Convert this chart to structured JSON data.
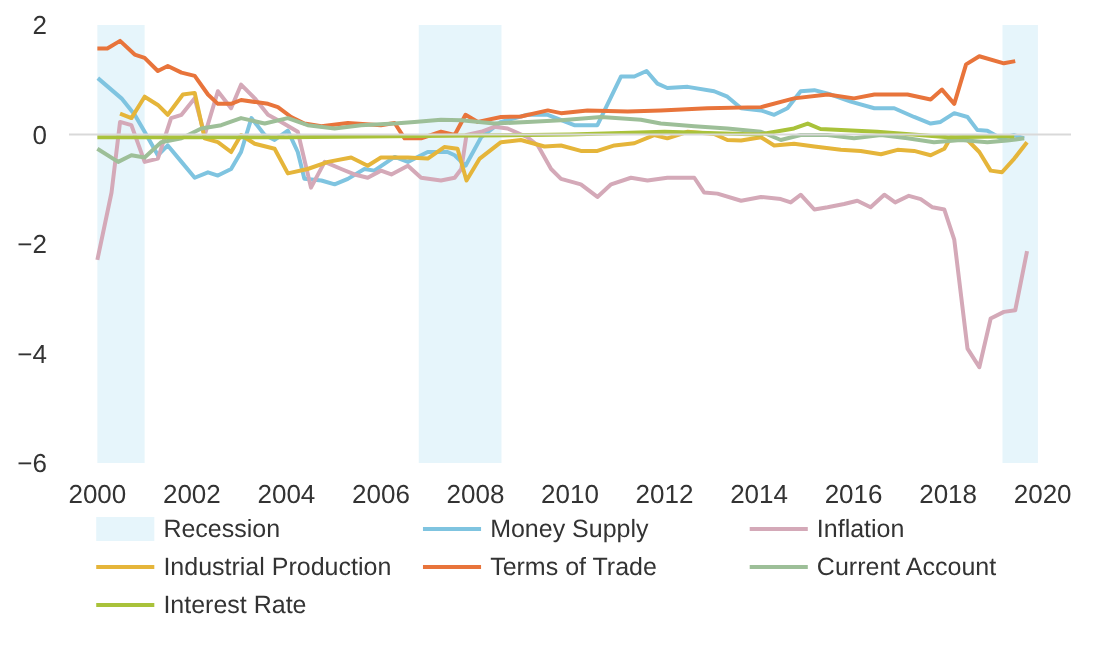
{
  "chart_data": {
    "type": "line",
    "xlim": [
      1999.4,
      2020.6
    ],
    "ylim": [
      -6,
      2
    ],
    "xticks": [
      2000,
      2002,
      2004,
      2006,
      2008,
      2010,
      2012,
      2014,
      2016,
      2018,
      2020
    ],
    "yticks": [
      -6,
      -4,
      -2,
      0,
      2
    ],
    "grid": false,
    "legend": "bottom",
    "line_style": "solid",
    "marker": "none",
    "bands": [
      {
        "axis": "x",
        "from": 2000.0,
        "to": 2001.0,
        "label": "Recession",
        "color": "#e6f5fb"
      },
      {
        "axis": "x",
        "from": 2006.8,
        "to": 2008.55,
        "label": null,
        "color": "#e6f5fb"
      },
      {
        "axis": "x",
        "from": 2019.15,
        "to": 2019.9,
        "label": null,
        "color": "#e6f5fb"
      }
    ],
    "ref_lines": [
      {
        "axis": "y",
        "value": 0,
        "label": null,
        "color": "#d9d9d9"
      }
    ],
    "series": [
      {
        "name": "Money Supply",
        "color": "#7fc4e0",
        "x": [
          2000.01,
          2000.51,
          2000.79,
          2001.0,
          2001.28,
          2001.49,
          2001.78,
          2002.06,
          2002.34,
          2002.55,
          2002.83,
          2003.04,
          2003.26,
          2003.54,
          2003.75,
          2004.03,
          2004.24,
          2004.38,
          2004.74,
          2005.02,
          2005.3,
          2005.65,
          2005.86,
          2006.29,
          2006.57,
          2006.99,
          2007.41,
          2007.56,
          2007.79,
          2008.12,
          2008.54,
          2009.1,
          2009.53,
          2010.09,
          2010.58,
          2011.08,
          2011.36,
          2011.62,
          2011.85,
          2012.06,
          2012.49,
          2013.05,
          2013.33,
          2013.62,
          2014.04,
          2014.32,
          2014.6,
          2014.88,
          2015.17,
          2015.52,
          2015.94,
          2016.44,
          2016.86,
          2017.28,
          2017.63,
          2017.84,
          2018.13,
          2018.41,
          2018.62,
          2018.83,
          2019.11,
          2019.4,
          2019.61
        ],
        "values": [
          1.03,
          0.66,
          0.36,
          0.05,
          -0.38,
          -0.2,
          -0.5,
          -0.79,
          -0.69,
          -0.75,
          -0.63,
          -0.32,
          0.3,
          -0.01,
          -0.1,
          0.07,
          -0.32,
          -0.81,
          -0.84,
          -0.91,
          -0.81,
          -0.63,
          -0.66,
          -0.41,
          -0.5,
          -0.32,
          -0.32,
          -0.38,
          -0.57,
          -0.05,
          0.23,
          0.36,
          0.36,
          0.17,
          0.17,
          1.06,
          1.06,
          1.16,
          0.93,
          0.85,
          0.87,
          0.79,
          0.69,
          0.48,
          0.44,
          0.36,
          0.48,
          0.79,
          0.81,
          0.73,
          0.6,
          0.48,
          0.48,
          0.32,
          0.2,
          0.23,
          0.39,
          0.32,
          0.08,
          0.07,
          -0.07,
          -0.01,
          -0.07
        ]
      },
      {
        "name": "Inflation",
        "color": "#d4a9b8",
        "x": [
          2000.0,
          2000.3,
          2000.48,
          2000.72,
          2001.0,
          2001.28,
          2001.56,
          2001.78,
          2002.06,
          2002.27,
          2002.55,
          2002.83,
          2003.04,
          2003.33,
          2003.61,
          2003.89,
          2004.24,
          2004.52,
          2004.81,
          2005.16,
          2005.44,
          2005.72,
          2006.0,
          2006.22,
          2006.57,
          2006.85,
          2007.27,
          2007.56,
          2007.7,
          2007.81,
          2008.12,
          2008.4,
          2008.68,
          2009.1,
          2009.32,
          2009.6,
          2009.81,
          2010.23,
          2010.58,
          2010.87,
          2011.29,
          2011.64,
          2012.06,
          2012.63,
          2012.84,
          2013.12,
          2013.62,
          2014.04,
          2014.46,
          2014.67,
          2014.88,
          2015.17,
          2015.45,
          2015.8,
          2016.08,
          2016.36,
          2016.65,
          2016.88,
          2017.17,
          2017.42,
          2017.67,
          2017.92,
          2018.13,
          2018.41,
          2018.66,
          2018.9,
          2019.18,
          2019.42,
          2019.67
        ],
        "values": [
          -2.29,
          -1.06,
          0.23,
          0.17,
          -0.5,
          -0.44,
          0.3,
          0.36,
          0.66,
          -0.01,
          0.79,
          0.48,
          0.91,
          0.66,
          0.36,
          0.23,
          0.05,
          -0.97,
          -0.5,
          -0.63,
          -0.73,
          -0.79,
          -0.66,
          -0.73,
          -0.57,
          -0.79,
          -0.84,
          -0.79,
          -0.63,
          -0.01,
          0.05,
          0.14,
          0.11,
          -0.05,
          -0.2,
          -0.63,
          -0.81,
          -0.91,
          -1.14,
          -0.91,
          -0.79,
          -0.84,
          -0.79,
          -0.79,
          -1.06,
          -1.08,
          -1.21,
          -1.14,
          -1.18,
          -1.24,
          -1.1,
          -1.37,
          -1.33,
          -1.27,
          -1.21,
          -1.33,
          -1.1,
          -1.24,
          -1.12,
          -1.18,
          -1.33,
          -1.37,
          -1.92,
          -3.91,
          -4.25,
          -3.36,
          -3.24,
          -3.21,
          -2.13
        ]
      },
      {
        "name": "Industrial Production",
        "color": "#e5b53a",
        "x": [
          2000.48,
          2000.72,
          2001.0,
          2001.28,
          2001.49,
          2001.81,
          2002.06,
          2002.27,
          2002.55,
          2002.83,
          2003.04,
          2003.33,
          2003.75,
          2004.03,
          2004.45,
          2004.88,
          2005.37,
          2005.72,
          2006.0,
          2006.57,
          2006.99,
          2007.34,
          2007.62,
          2007.81,
          2008.09,
          2008.54,
          2008.96,
          2009.46,
          2009.81,
          2010.23,
          2010.58,
          2010.94,
          2011.36,
          2011.78,
          2012.06,
          2012.49,
          2013.05,
          2013.33,
          2013.62,
          2014.04,
          2014.32,
          2014.74,
          2015.17,
          2015.73,
          2016.15,
          2016.58,
          2016.93,
          2017.28,
          2017.63,
          2017.92,
          2018.06,
          2018.41,
          2018.66,
          2018.9,
          2019.14,
          2019.4,
          2019.67
        ],
        "values": [
          0.38,
          0.3,
          0.69,
          0.54,
          0.36,
          0.73,
          0.76,
          -0.07,
          -0.14,
          -0.32,
          -0.01,
          -0.17,
          -0.26,
          -0.71,
          -0.63,
          -0.5,
          -0.42,
          -0.57,
          -0.42,
          -0.42,
          -0.44,
          -0.23,
          -0.26,
          -0.84,
          -0.44,
          -0.14,
          -0.1,
          -0.22,
          -0.2,
          -0.3,
          -0.3,
          -0.2,
          -0.16,
          -0.01,
          -0.07,
          0.05,
          0.01,
          -0.1,
          -0.11,
          -0.05,
          -0.2,
          -0.17,
          -0.22,
          -0.28,
          -0.3,
          -0.36,
          -0.28,
          -0.3,
          -0.38,
          -0.26,
          -0.05,
          -0.1,
          -0.32,
          -0.66,
          -0.69,
          -0.44,
          -0.14
        ]
      },
      {
        "name": "Terms of Trade",
        "color": "#e8743b",
        "x": [
          2000.0,
          2000.21,
          2000.48,
          2000.79,
          2001.0,
          2001.28,
          2001.49,
          2001.78,
          2002.06,
          2002.34,
          2002.55,
          2002.83,
          2003.04,
          2003.61,
          2003.82,
          2004.1,
          2004.38,
          2004.74,
          2005.3,
          2006.0,
          2006.29,
          2006.5,
          2006.85,
          2007.27,
          2007.56,
          2007.79,
          2008.05,
          2008.54,
          2008.96,
          2009.53,
          2009.81,
          2010.37,
          2011.22,
          2011.92,
          2012.91,
          2014.04,
          2014.74,
          2015.45,
          2016.01,
          2016.44,
          2017.14,
          2017.63,
          2017.87,
          2018.13,
          2018.38,
          2018.66,
          2019.18,
          2019.42
        ],
        "values": [
          1.57,
          1.57,
          1.71,
          1.46,
          1.4,
          1.16,
          1.25,
          1.13,
          1.07,
          0.73,
          0.56,
          0.56,
          0.63,
          0.56,
          0.5,
          0.32,
          0.2,
          0.15,
          0.21,
          0.17,
          0.21,
          -0.07,
          -0.07,
          0.05,
          -0.01,
          0.36,
          0.23,
          0.32,
          0.33,
          0.44,
          0.39,
          0.44,
          0.42,
          0.44,
          0.48,
          0.5,
          0.66,
          0.73,
          0.66,
          0.73,
          0.73,
          0.64,
          0.82,
          0.56,
          1.28,
          1.43,
          1.3,
          1.34
        ]
      },
      {
        "name": "Current Account",
        "color": "#9dbf98",
        "x": [
          2000.0,
          2000.44,
          2000.72,
          2001.0,
          2001.35,
          2001.78,
          2002.2,
          2002.62,
          2003.04,
          2003.54,
          2004.03,
          2004.45,
          2005.02,
          2005.58,
          2006.29,
          2006.71,
          2007.27,
          2007.7,
          2008.4,
          2009.1,
          2009.81,
          2010.66,
          2011.5,
          2011.92,
          2012.63,
          2013.33,
          2014.04,
          2014.46,
          2014.88,
          2015.45,
          2016.01,
          2016.58,
          2017.14,
          2017.7,
          2018.27,
          2018.83,
          2019.25,
          2019.61
        ],
        "values": [
          -0.26,
          -0.5,
          -0.38,
          -0.42,
          -0.14,
          -0.07,
          0.11,
          0.17,
          0.3,
          0.2,
          0.3,
          0.17,
          0.11,
          0.17,
          0.2,
          0.23,
          0.27,
          0.26,
          0.2,
          0.23,
          0.26,
          0.32,
          0.27,
          0.2,
          0.15,
          0.11,
          0.05,
          -0.1,
          -0.01,
          -0.01,
          -0.07,
          -0.01,
          -0.07,
          -0.14,
          -0.1,
          -0.14,
          -0.11,
          -0.07
        ]
      },
      {
        "name": "Interest Rate",
        "color": "#a9c23a",
        "x": [
          2000.0,
          2004.0,
          2008.0,
          2010.0,
          2012.0,
          2014.0,
          2014.74,
          2015.03,
          2015.3,
          2016.5,
          2018.0,
          2019.4
        ],
        "values": [
          -0.05,
          -0.05,
          -0.02,
          0.0,
          0.05,
          0.0,
          0.11,
          0.2,
          0.1,
          0.05,
          -0.05,
          -0.03
        ]
      }
    ]
  }
}
